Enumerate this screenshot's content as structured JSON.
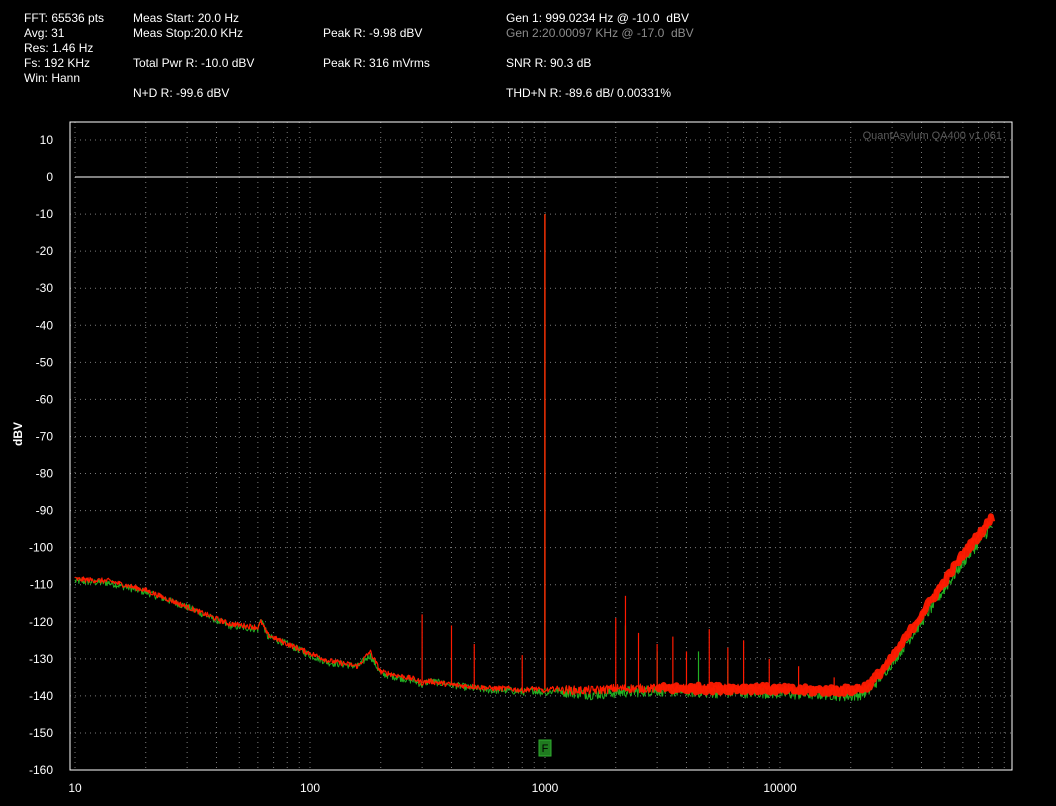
{
  "header": {
    "fft": "FFT: 65536 pts",
    "avg": "Avg: 31",
    "res": "Res: 1.46 Hz",
    "fs": "Fs: 192 KHz",
    "win": "Win: Hann",
    "meas_start": "Meas Start: 20.0 Hz",
    "meas_stop": "Meas Stop:20.0 KHz",
    "total_pwr": "Total Pwr R: -10.0 dBV",
    "nd": "N+D R: -99.6 dBV",
    "peak_r_dbv": "Peak R: -9.98 dBV",
    "peak_r_mv": "Peak R: 316 mVrms",
    "gen1": "Gen 1: 999.0234 Hz @ -10.0  dBV",
    "gen2": "Gen 2:20.00097 KHz @ -17.0  dBV",
    "snr": "SNR R: 90.3 dB",
    "thdn": "THD+N R: -89.6 dB/ 0.00331%"
  },
  "watermark": "QuantAsylum QA400 v1.061",
  "marker_label": "F",
  "colors": {
    "background": "#000000",
    "grid": "#7a7a7a",
    "frame": "#ffffff",
    "reference_line": "#ffffff",
    "series_right": "#ff1a00",
    "series_left": "#22b022",
    "marker": "#1f7a1f",
    "dim_text": "#8c8c8c"
  },
  "chart_data": {
    "type": "line",
    "xlabel": "",
    "ylabel": "dBV",
    "x_scale": "log",
    "xlim": [
      10,
      80000
    ],
    "ylim": [
      -160,
      15
    ],
    "grid": true,
    "y_ticks": [
      10,
      0,
      -10,
      -20,
      -30,
      -40,
      -50,
      -60,
      -70,
      -80,
      -90,
      -100,
      -110,
      -120,
      -130,
      -140,
      -150,
      -160
    ],
    "x_ticks": [
      10,
      100,
      1000,
      10000
    ],
    "x_tick_labels": [
      "10",
      "100",
      "1000",
      "10000"
    ],
    "reference_line_y": 0,
    "marker_x": 1000,
    "series": [
      {
        "color": "#22b022",
        "x": [
          10,
          14,
          20,
          30,
          45,
          60,
          62,
          66,
          80,
          100,
          120,
          160,
          180,
          200,
          280,
          300,
          320,
          400,
          500,
          600,
          700,
          800,
          900,
          960,
          999,
          1040,
          1100,
          1300,
          1600,
          2000,
          3000,
          5000,
          8000,
          12000,
          16000,
          20000,
          22000,
          24000,
          30000,
          40000,
          60000,
          80000
        ],
        "y": [
          -109,
          -109.5,
          -112,
          -116,
          -121,
          -122,
          -119,
          -124,
          -126,
          -129,
          -131,
          -132,
          -129,
          -134,
          -136,
          -137,
          -136,
          -137,
          -138,
          -138.5,
          -138.5,
          -139,
          -138.5,
          -139,
          -10,
          -139,
          -138.5,
          -139,
          -139.5,
          -139,
          -138.5,
          -139,
          -139,
          -139.5,
          -139.5,
          -140,
          -139.5,
          -138.5,
          -131,
          -120,
          -104,
          -94
        ]
      },
      {
        "color": "#ff1a00",
        "x": [
          10,
          14,
          20,
          30,
          45,
          60,
          62,
          66,
          80,
          100,
          120,
          160,
          180,
          200,
          280,
          300,
          320,
          400,
          500,
          600,
          700,
          800,
          900,
          960,
          999,
          1040,
          1100,
          1300,
          1600,
          2000,
          3000,
          5000,
          8000,
          12000,
          16000,
          20000,
          22000,
          24000,
          30000,
          40000,
          60000,
          80000
        ],
        "y": [
          -108.5,
          -109,
          -111.5,
          -116,
          -120.5,
          -121.5,
          -120,
          -123.5,
          -126,
          -128.5,
          -130.5,
          -132,
          -128,
          -133.5,
          -135.5,
          -136.5,
          -136,
          -137,
          -137.5,
          -138,
          -138,
          -138.5,
          -138,
          -138.5,
          -10,
          -138.5,
          -138,
          -138.5,
          -138.5,
          -138,
          -138,
          -138,
          -138,
          -138.5,
          -138.5,
          -138.5,
          -138,
          -137,
          -130,
          -118,
          -102,
          -92
        ]
      }
    ],
    "harmonic_spikes_right": [
      {
        "x": 300,
        "y": -118
      },
      {
        "x": 400,
        "y": -121
      },
      {
        "x": 500,
        "y": -126
      },
      {
        "x": 800,
        "y": -129
      },
      {
        "x": 2000,
        "y": -119
      },
      {
        "x": 2200,
        "y": -113
      },
      {
        "x": 2500,
        "y": -123
      },
      {
        "x": 3000,
        "y": -126
      },
      {
        "x": 3500,
        "y": -124
      },
      {
        "x": 4000,
        "y": -128
      },
      {
        "x": 5000,
        "y": -122
      },
      {
        "x": 6000,
        "y": -127
      },
      {
        "x": 7000,
        "y": -125
      },
      {
        "x": 9000,
        "y": -130
      },
      {
        "x": 12000,
        "y": -132
      },
      {
        "x": 17000,
        "y": -135
      }
    ],
    "harmonic_spikes_left": [
      {
        "x": 2200,
        "y": -121
      },
      {
        "x": 3000,
        "y": -128
      },
      {
        "x": 4500,
        "y": -128
      },
      {
        "x": 6000,
        "y": -130
      }
    ]
  }
}
